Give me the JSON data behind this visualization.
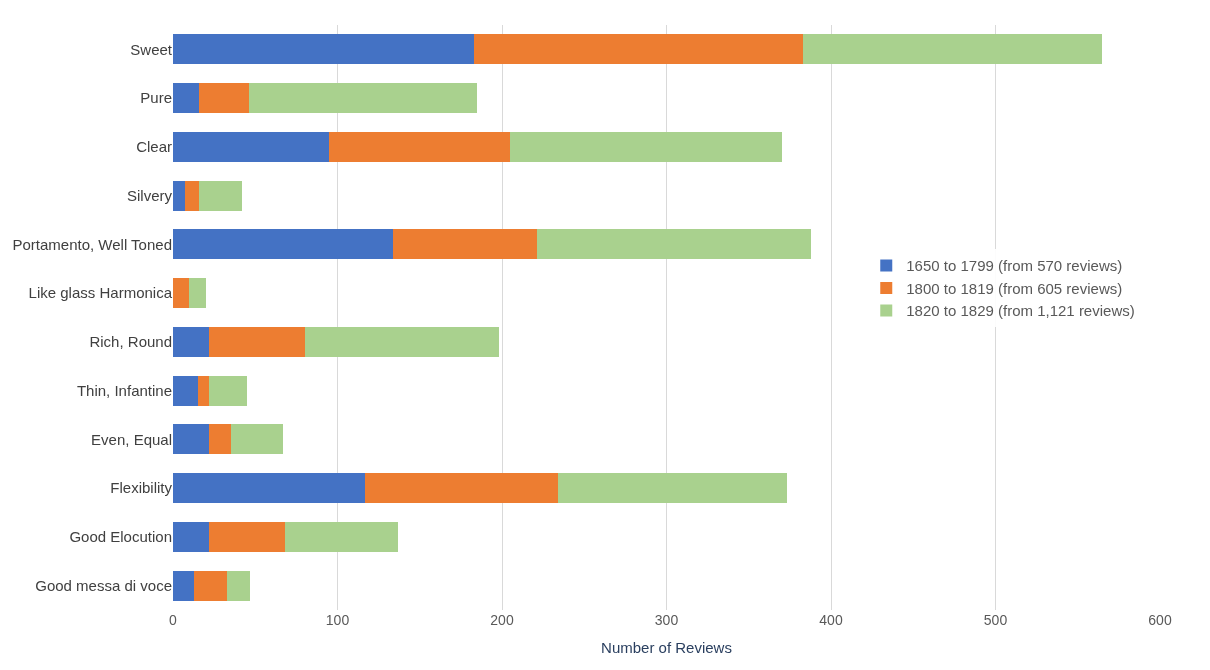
{
  "chart_data": {
    "type": "bar",
    "orientation": "horizontal",
    "stacked": true,
    "xlabel": "Number of Reviews",
    "categories": [
      "Sweet",
      "Pure",
      "Clear",
      "Silvery",
      "Portamento, Well Toned",
      "Like glass Harmonica",
      "Rich, Round",
      "Thin, Infantine",
      "Even, Equal",
      "Flexibility",
      "Good Elocution",
      "Good messa di voce"
    ],
    "series": [
      {
        "name": "1650 to 1799 (from 570 reviews)",
        "color": "#4472c4",
        "values": [
          183,
          16,
          95,
          7,
          134,
          0,
          22,
          15,
          22,
          117,
          22,
          13
        ]
      },
      {
        "name": "1800 to 1819 (from 605 reviews)",
        "color": "#ed7d31",
        "values": [
          200,
          30,
          110,
          9,
          87,
          10,
          58,
          7,
          13,
          117,
          46,
          20
        ]
      },
      {
        "name": "1820 to 1829 (from 1,121 reviews)",
        "color": "#a9d18e",
        "values": [
          182,
          139,
          165,
          26,
          167,
          10,
          118,
          23,
          32,
          139,
          69,
          14
        ]
      }
    ],
    "xlim": [
      0,
      600
    ],
    "xticks": [
      0,
      100,
      200,
      300,
      400,
      500,
      600
    ],
    "grid": "x",
    "legend": "right"
  }
}
